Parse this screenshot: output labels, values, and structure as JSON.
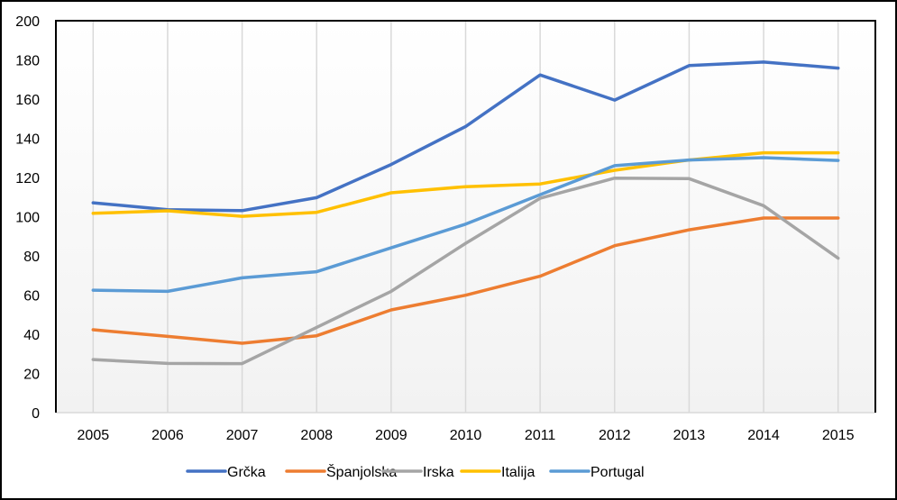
{
  "chart_data": {
    "type": "line",
    "title": "",
    "xlabel": "",
    "ylabel": "",
    "x": [
      "2005",
      "2006",
      "2007",
      "2008",
      "2009",
      "2010",
      "2011",
      "2012",
      "2013",
      "2014",
      "2015"
    ],
    "ylim": [
      0,
      200
    ],
    "yticks": [
      0,
      20,
      40,
      60,
      80,
      100,
      120,
      140,
      160,
      180,
      200
    ],
    "ytick_labels": [
      "0",
      "20",
      "40",
      "60",
      "80",
      "100",
      "120",
      "140",
      "160",
      "180",
      "200"
    ],
    "grid": "vertical",
    "legend_position": "bottom",
    "series": [
      {
        "name": "Grčka",
        "color": "#4472c4",
        "values": [
          107.1,
          103.6,
          103.1,
          109.7,
          126.6,
          146.0,
          172.3,
          159.5,
          177.1,
          178.9,
          175.8
        ]
      },
      {
        "name": "Španjolska",
        "color": "#ed7d31",
        "values": [
          42.3,
          38.9,
          35.4,
          39.2,
          52.4,
          59.9,
          69.6,
          85.2,
          93.3,
          99.3,
          99.3
        ]
      },
      {
        "name": "Irska",
        "color": "#a5a5a5",
        "values": [
          27.1,
          25.1,
          25.0,
          43.5,
          61.9,
          86.4,
          109.4,
          119.7,
          119.4,
          105.6,
          78.8
        ]
      },
      {
        "name": "Italija",
        "color": "#ffc000",
        "values": [
          101.7,
          103.0,
          100.2,
          102.2,
          112.2,
          115.3,
          116.7,
          123.7,
          128.9,
          132.6,
          132.6
        ]
      },
      {
        "name": "Portugal",
        "color": "#5b9bd5",
        "values": [
          62.5,
          61.9,
          68.8,
          71.9,
          84.1,
          96.2,
          111.2,
          126.0,
          128.9,
          130.1,
          128.7
        ]
      }
    ]
  }
}
